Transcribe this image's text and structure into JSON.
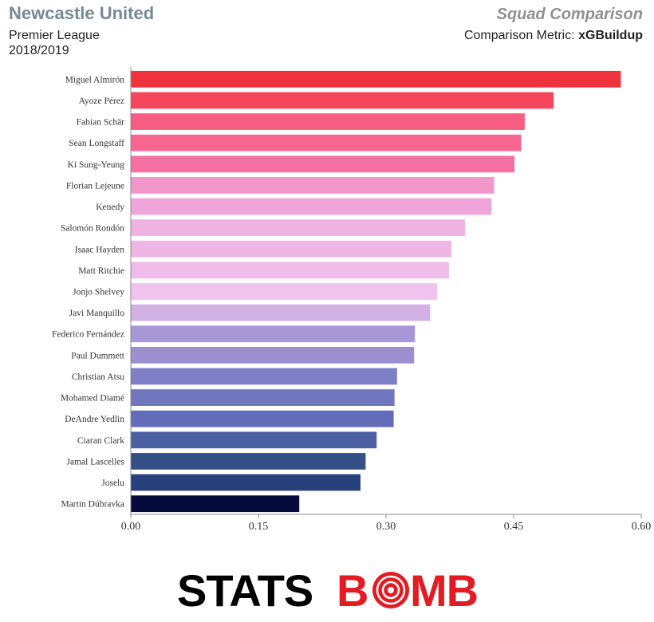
{
  "header": {
    "team": "Newcastle United",
    "competition": "Premier League",
    "season": "2018/2019",
    "title": "Squad Comparison",
    "metric_label": "Comparison Metric:",
    "metric_name": "xGBuildup"
  },
  "chart_data": {
    "type": "bar",
    "orientation": "horizontal",
    "categories": [
      "Miguel Almirón",
      "Ayoze Pérez",
      "Fabian Schär",
      "Sean Longstaff",
      "Ki Sung-Yeung",
      "Florian Lejeune",
      "Kenedy",
      "Salomón Rondón",
      "Isaac Hayden",
      "Matt Ritchie",
      "Jonjo Shelvey",
      "Javi Manquillo",
      "Federico Fernández",
      "Paul Dummett",
      "Christian Atsu",
      "Mohamed Diamé",
      "DeAndre Yedlin",
      "Ciaran Clark",
      "Jamal Lascelles",
      "Joselu",
      "Martin Dúbravka"
    ],
    "values": [
      0.576,
      0.497,
      0.463,
      0.459,
      0.451,
      0.427,
      0.424,
      0.393,
      0.377,
      0.374,
      0.36,
      0.352,
      0.334,
      0.333,
      0.313,
      0.31,
      0.309,
      0.289,
      0.276,
      0.27,
      0.198
    ],
    "colors": [
      "#f0323c",
      "#f7455e",
      "#f75d80",
      "#f76690",
      "#f470a0",
      "#f197cc",
      "#f0a5da",
      "#efb2e2",
      "#eeb6e4",
      "#efbbe8",
      "#efc3ee",
      "#d2b2e4",
      "#a697d6",
      "#9b8fd2",
      "#7e7fc6",
      "#7076c0",
      "#626cb9",
      "#4a60a2",
      "#345087",
      "#28417a",
      "#050b3c"
    ],
    "xlim": [
      0,
      0.6
    ],
    "xticks": [
      "0.00",
      "0.15",
      "0.30",
      "0.45",
      "0.60"
    ],
    "grid": false
  },
  "logo": {
    "text_left": "STATS",
    "text_b": "B",
    "text_right": "MB",
    "color_left": "#000000",
    "color_right": "#e31b23"
  }
}
